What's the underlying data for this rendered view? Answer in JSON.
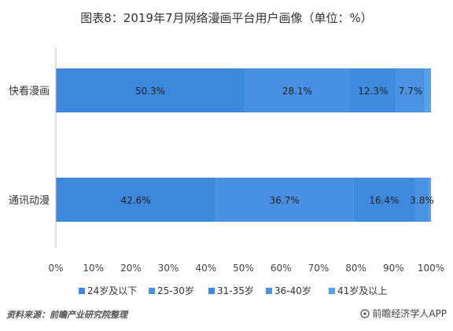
{
  "chart_data": {
    "type": "bar",
    "orientation": "horizontal",
    "stacked": true,
    "title": "图表8：2019年7月网络漫画平台用户画像（单位：%）",
    "categories": [
      "快看漫画",
      "通讯动漫"
    ],
    "series": [
      {
        "name": "24岁及以下",
        "color": "#4a90e2",
        "values": [
          50.3,
          42.6
        ],
        "labels": [
          "50.3%",
          "42.6%"
        ]
      },
      {
        "name": "25-30岁",
        "color": "#4a90e2",
        "values": [
          28.1,
          36.7
        ],
        "labels": [
          "28.1%",
          "36.7%"
        ]
      },
      {
        "name": "31-35岁",
        "color": "#4a90e2",
        "values": [
          12.3,
          16.4
        ],
        "labels": [
          "12.3%",
          "16.4%"
        ]
      },
      {
        "name": "36-40岁",
        "color": "#4a90e2",
        "values": [
          7.7,
          3.8
        ],
        "labels": [
          "7.7%",
          "3.8%"
        ]
      },
      {
        "name": "41岁及以上",
        "color": "#4a90e2",
        "values": [
          1.6,
          0.5
        ],
        "labels": [
          "",
          ""
        ]
      }
    ],
    "xlim": [
      0,
      100
    ],
    "xticks": [
      "0%",
      "10%",
      "20%",
      "30%",
      "40%",
      "50%",
      "60%",
      "70%",
      "80%",
      "90%",
      "100%"
    ],
    "legend_position": "bottom",
    "grid": false
  },
  "footer": {
    "source": "资料来源：前瞻产业研究院整理",
    "brand": "前瞻经济学人APP",
    "brand_icon": "brand-icon"
  }
}
